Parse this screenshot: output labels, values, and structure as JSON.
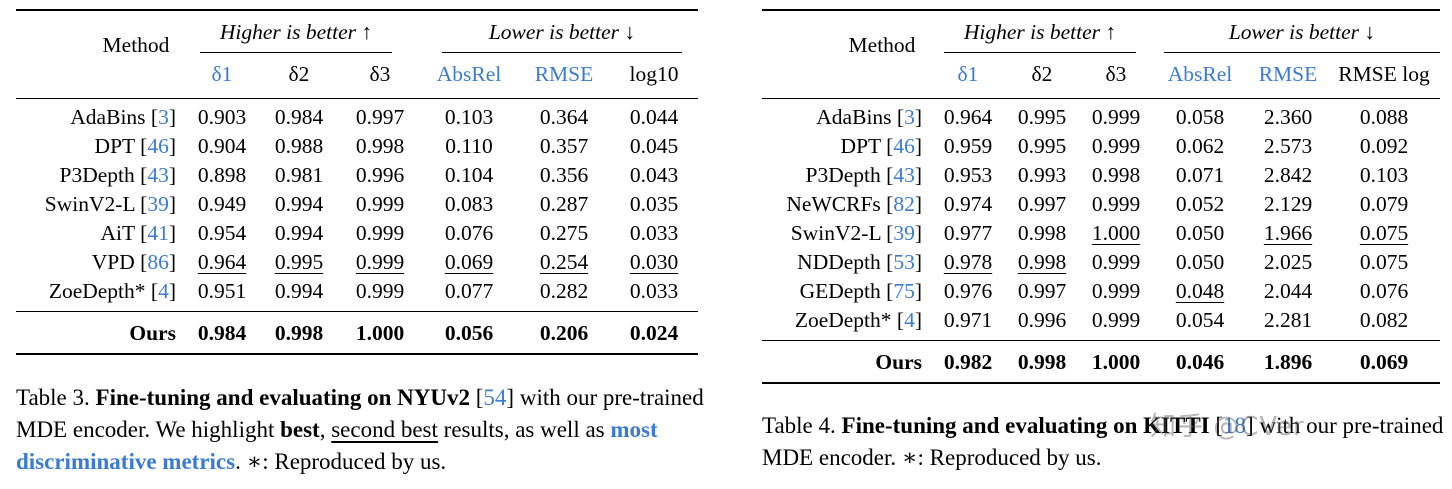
{
  "left": {
    "group_higher": "Higher is better ↑",
    "group_lower": "Lower is better ↓",
    "method_header": "Method",
    "columns": [
      {
        "label": "δ1",
        "blue": true
      },
      {
        "label": "δ2",
        "blue": false
      },
      {
        "label": "δ3",
        "blue": false
      },
      {
        "label": "AbsRel",
        "blue": true
      },
      {
        "label": "RMSE",
        "blue": true
      },
      {
        "label": "log10",
        "blue": false
      }
    ],
    "rows": [
      {
        "method": "AdaBins",
        "ref": "3",
        "vals": [
          "0.903",
          "0.984",
          "0.997",
          "0.103",
          "0.364",
          "0.044"
        ],
        "under": []
      },
      {
        "method": "DPT",
        "ref": "46",
        "vals": [
          "0.904",
          "0.988",
          "0.998",
          "0.110",
          "0.357",
          "0.045"
        ],
        "under": []
      },
      {
        "method": "P3Depth",
        "ref": "43",
        "vals": [
          "0.898",
          "0.981",
          "0.996",
          "0.104",
          "0.356",
          "0.043"
        ],
        "under": []
      },
      {
        "method": "SwinV2-L",
        "ref": "39",
        "vals": [
          "0.949",
          "0.994",
          "0.999",
          "0.083",
          "0.287",
          "0.035"
        ],
        "under": []
      },
      {
        "method": "AiT",
        "ref": "41",
        "vals": [
          "0.954",
          "0.994",
          "0.999",
          "0.076",
          "0.275",
          "0.033"
        ],
        "under": []
      },
      {
        "method": "VPD",
        "ref": "86",
        "vals": [
          "0.964",
          "0.995",
          "0.999",
          "0.069",
          "0.254",
          "0.030"
        ],
        "under": [
          0,
          1,
          2,
          3,
          4,
          5
        ]
      },
      {
        "method": "ZoeDepth*",
        "ref": "4",
        "vals": [
          "0.951",
          "0.994",
          "0.999",
          "0.077",
          "0.282",
          "0.033"
        ],
        "under": []
      }
    ],
    "ours": {
      "method": "Ours",
      "vals": [
        "0.984",
        "0.998",
        "1.000",
        "0.056",
        "0.206",
        "0.024"
      ]
    },
    "caption": {
      "prefix": "Table 3.",
      "bold": "Fine-tuning and evaluating on NYUv2",
      "ref": "54",
      "t1": "with our pre-trained MDE encoder. We highlight",
      "best": "best",
      "comma": ",",
      "second": "second best",
      "t2": "results, as well as",
      "blue": "most discriminative metrics",
      "t3": ". ∗: Reproduced by us."
    }
  },
  "right": {
    "group_higher": "Higher is better ↑",
    "group_lower": "Lower is better ↓",
    "method_header": "Method",
    "columns": [
      {
        "label": "δ1",
        "blue": true
      },
      {
        "label": "δ2",
        "blue": false
      },
      {
        "label": "δ3",
        "blue": false
      },
      {
        "label": "AbsRel",
        "blue": true
      },
      {
        "label": "RMSE",
        "blue": true
      },
      {
        "label": "RMSE log",
        "blue": false
      }
    ],
    "rows": [
      {
        "method": "AdaBins",
        "ref": "3",
        "vals": [
          "0.964",
          "0.995",
          "0.999",
          "0.058",
          "2.360",
          "0.088"
        ],
        "under": []
      },
      {
        "method": "DPT",
        "ref": "46",
        "vals": [
          "0.959",
          "0.995",
          "0.999",
          "0.062",
          "2.573",
          "0.092"
        ],
        "under": []
      },
      {
        "method": "P3Depth",
        "ref": "43",
        "vals": [
          "0.953",
          "0.993",
          "0.998",
          "0.071",
          "2.842",
          "0.103"
        ],
        "under": []
      },
      {
        "method": "NeWCRFs",
        "ref": "82",
        "vals": [
          "0.974",
          "0.997",
          "0.999",
          "0.052",
          "2.129",
          "0.079"
        ],
        "under": []
      },
      {
        "method": "SwinV2-L",
        "ref": "39",
        "vals": [
          "0.977",
          "0.998",
          "1.000",
          "0.050",
          "1.966",
          "0.075"
        ],
        "under": [
          2,
          4,
          5
        ]
      },
      {
        "method": "NDDepth",
        "ref": "53",
        "vals": [
          "0.978",
          "0.998",
          "0.999",
          "0.050",
          "2.025",
          "0.075"
        ],
        "under": [
          0,
          1
        ]
      },
      {
        "method": "GEDepth",
        "ref": "75",
        "vals": [
          "0.976",
          "0.997",
          "0.999",
          "0.048",
          "2.044",
          "0.076"
        ],
        "under": [
          3
        ]
      },
      {
        "method": "ZoeDepth*",
        "ref": "4",
        "vals": [
          "0.971",
          "0.996",
          "0.999",
          "0.054",
          "2.281",
          "0.082"
        ],
        "under": []
      }
    ],
    "ours": {
      "method": "Ours",
      "vals": [
        "0.982",
        "0.998",
        "1.000",
        "0.046",
        "1.896",
        "0.069"
      ]
    },
    "caption": {
      "prefix": "Table 4.",
      "bold": "Fine-tuning and evaluating on KITTI",
      "ref": "18",
      "t1": "with our pre-trained MDE encoder. ∗: Reproduced by us."
    }
  },
  "watermark": "知乎 @CVer"
}
